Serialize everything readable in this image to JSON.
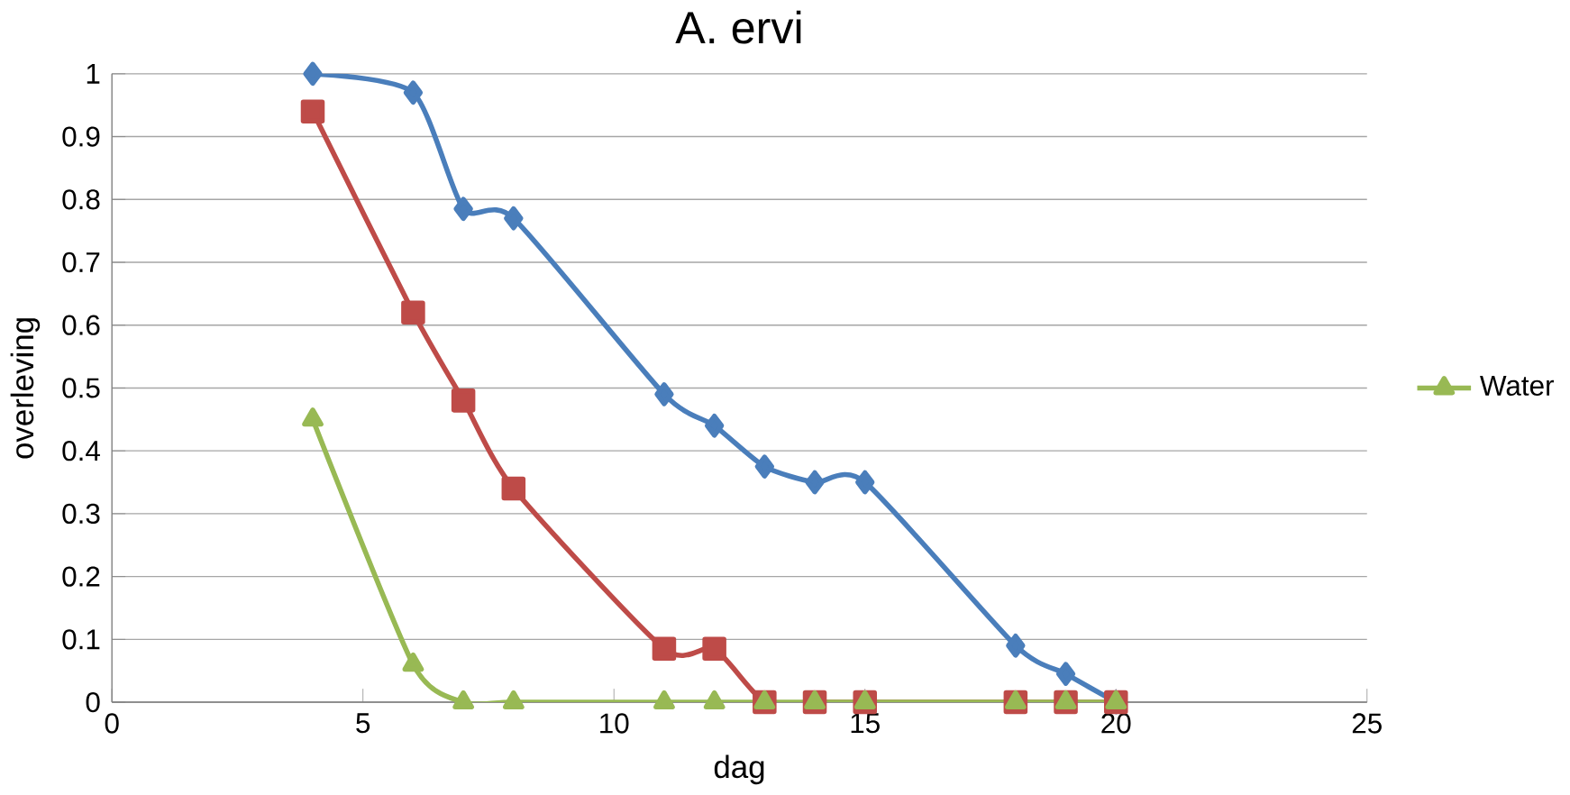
{
  "chart_data": {
    "type": "line",
    "title": "A. ervi",
    "xlabel": "dag",
    "ylabel": "overleving",
    "xlim": [
      0,
      25
    ],
    "xticks": [
      0,
      5,
      10,
      15,
      20,
      25
    ],
    "ylim": [
      0,
      1
    ],
    "yticks": [
      0,
      0.1,
      0.2,
      0.3,
      0.4,
      0.5,
      0.6,
      0.7,
      0.8,
      0.9,
      1
    ],
    "grid": "y",
    "legend": "right",
    "series": [
      {
        "color": "#4a7ebb",
        "marker": "diamond",
        "x": [
          4,
          6,
          7,
          8,
          11,
          12,
          13,
          14,
          15,
          18,
          19,
          20
        ],
        "values": [
          1.0,
          0.97,
          0.785,
          0.77,
          0.49,
          0.44,
          0.375,
          0.35,
          0.35,
          0.09,
          0.045,
          0
        ]
      },
      {
        "color": "#be4b48",
        "marker": "square",
        "x": [
          4,
          6,
          7,
          8,
          11,
          12,
          13,
          14,
          15,
          18,
          19,
          20
        ],
        "values": [
          0.94,
          0.62,
          0.48,
          0.34,
          0.085,
          0.085,
          0,
          0,
          0,
          0,
          0,
          0
        ]
      },
      {
        "name": "Water",
        "color": "#98b954",
        "marker": "triangle",
        "x": [
          4,
          6,
          7,
          8,
          11,
          12,
          13,
          14,
          15,
          18,
          19,
          20
        ],
        "values": [
          0.45,
          0.06,
          0,
          0,
          0,
          0,
          0,
          0,
          0,
          0,
          0,
          0
        ]
      }
    ]
  }
}
